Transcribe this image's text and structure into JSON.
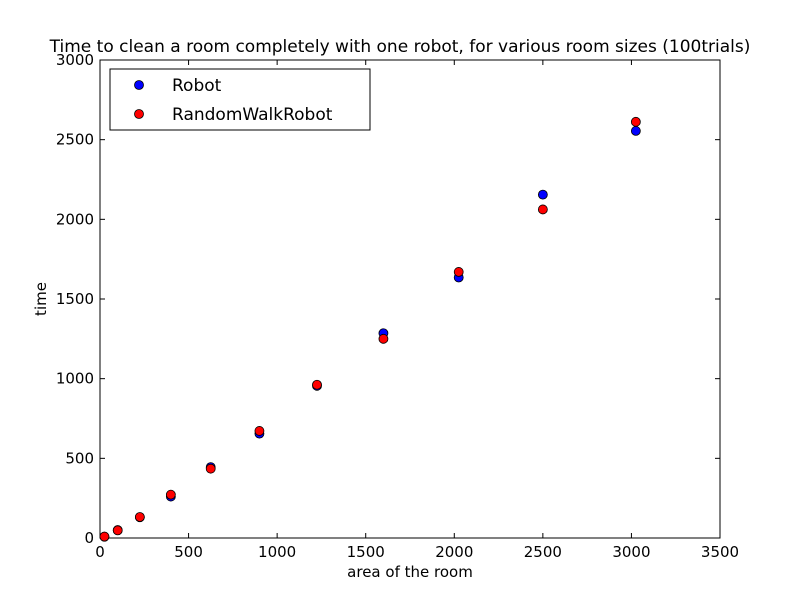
{
  "chart_data": {
    "type": "scatter",
    "title": "Time to clean a room completely with one robot, for various room sizes (100trials)",
    "xlabel": "area of the room",
    "ylabel": "time",
    "xlim": [
      0,
      3500
    ],
    "ylim": [
      0,
      3000
    ],
    "xticks": [
      0,
      500,
      1000,
      1500,
      2000,
      2500,
      3000,
      3500
    ],
    "yticks": [
      0,
      500,
      1000,
      1500,
      2000,
      2500,
      3000
    ],
    "grid": false,
    "legend_position": "top-left",
    "x": [
      25,
      100,
      225,
      400,
      625,
      900,
      1225,
      1600,
      2025,
      2500,
      3025
    ],
    "series": [
      {
        "name": "Robot",
        "color": "#0000ff",
        "values": [
          8,
          50,
          130,
          260,
          445,
          655,
          955,
          1285,
          1635,
          2155,
          2555
        ]
      },
      {
        "name": "RandomWalkRobot",
        "color": "#ff0000",
        "values": [
          9,
          48,
          132,
          272,
          435,
          672,
          962,
          1250,
          1670,
          2062,
          2612
        ]
      }
    ]
  }
}
